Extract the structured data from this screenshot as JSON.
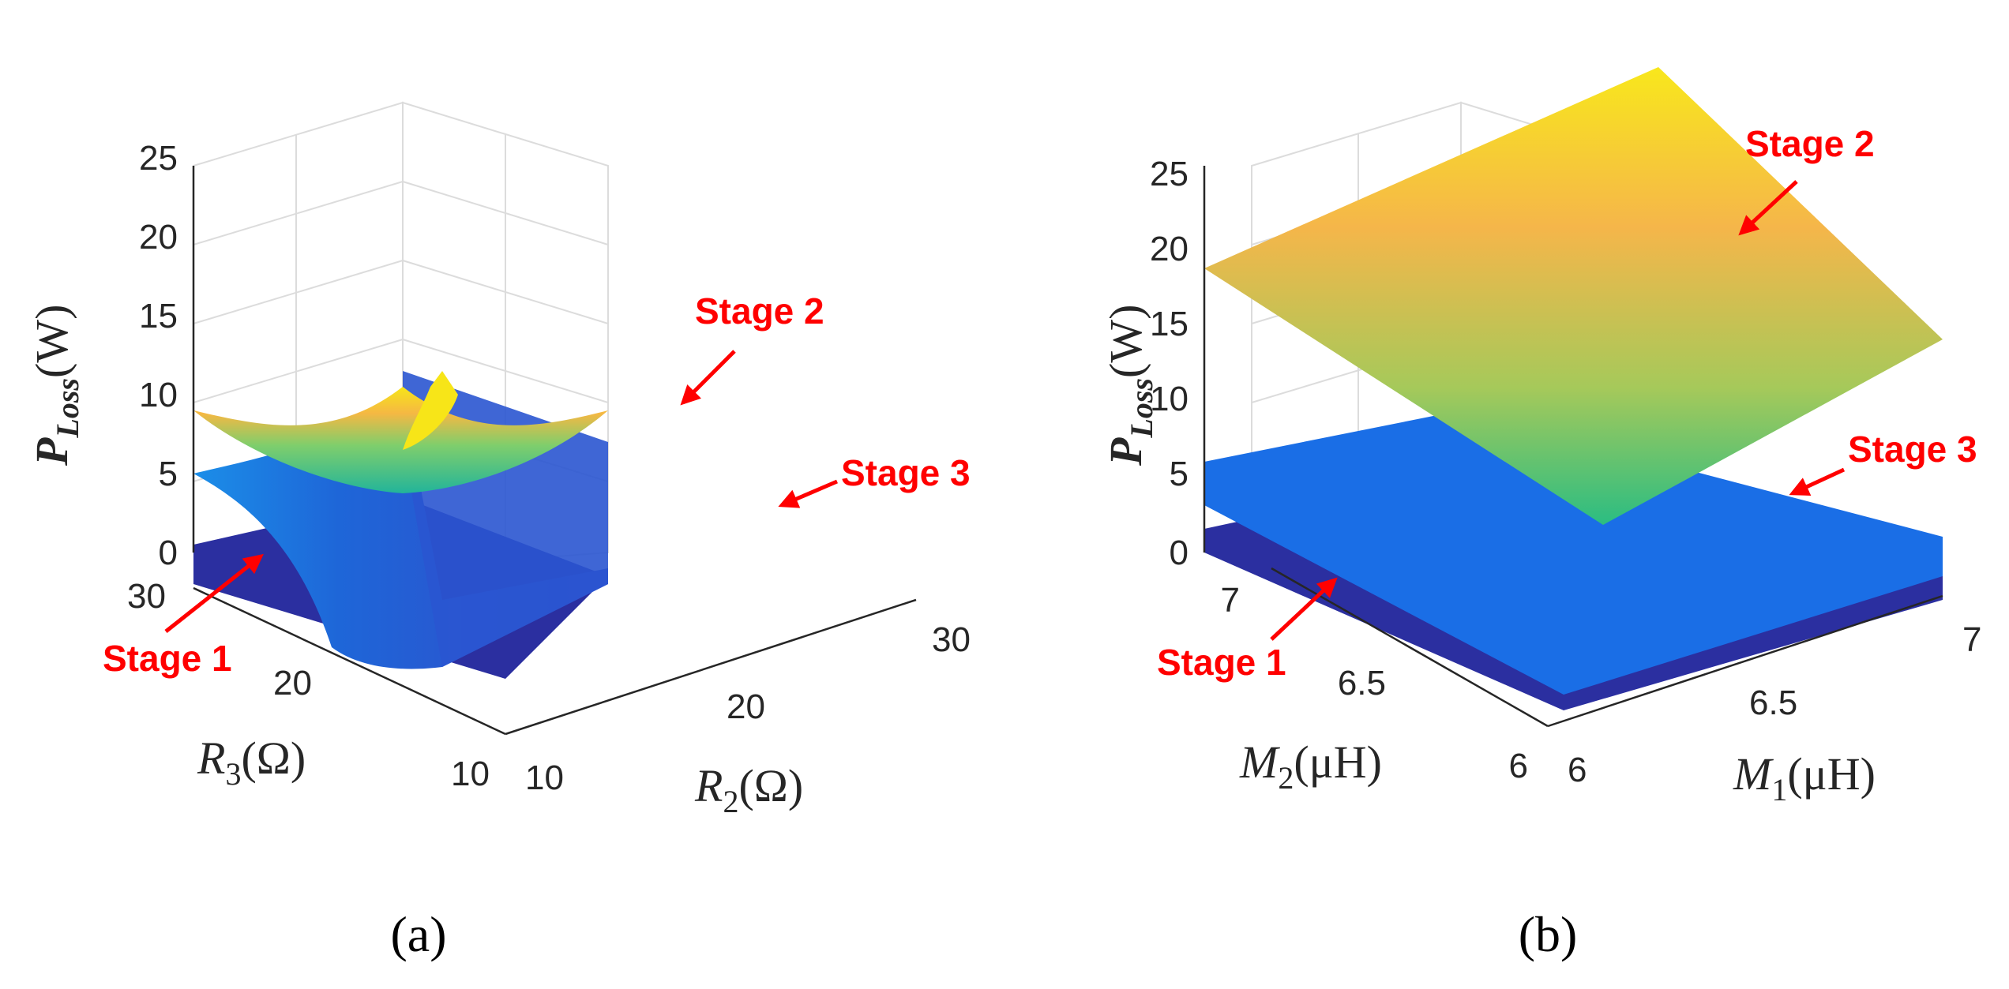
{
  "colors": {
    "stage1": "#2b2fa0",
    "stage3": "#1a6ee6",
    "annotation": "#ff0000",
    "parula_low": "#3a4fd4",
    "parula_mid": "#1fbf9c",
    "parula_high": "#f7e518"
  },
  "chart_data": [
    {
      "panel_label": "(a)",
      "type": "surface3d",
      "zlabel": "P_Loss(W)",
      "zlabel_main": "P",
      "zlabel_sub": "Loss",
      "zlabel_unit": "(W)",
      "xlabel": "R_2(Ω)",
      "xlabel_main": "R",
      "xlabel_sub": "2",
      "xlabel_unit": "(Ω)",
      "ylabel": "R_3(Ω)",
      "ylabel_main": "R",
      "ylabel_sub": "3",
      "ylabel_unit": "(Ω)",
      "xlim": [
        10,
        30
      ],
      "ylim": [
        10,
        30
      ],
      "zlim": [
        0,
        25
      ],
      "xticks": [
        "10",
        "20",
        "30"
      ],
      "yticks": [
        "10",
        "20",
        "30"
      ],
      "zticks": [
        "0",
        "5",
        "10",
        "15",
        "20",
        "25"
      ],
      "series": [
        {
          "name": "Stage 1",
          "approx_ploss_range": [
            1.5,
            2.0
          ]
        },
        {
          "name": "Stage 2",
          "approx_ploss_range": [
            7,
            14
          ]
        },
        {
          "name": "Stage 3",
          "approx_ploss_range": [
            1,
            5.5
          ]
        }
      ],
      "annotations": [
        "Stage 1",
        "Stage 2",
        "Stage 3"
      ]
    },
    {
      "panel_label": "(b)",
      "type": "surface3d",
      "zlabel": "P_Loss(W)",
      "zlabel_main": "P",
      "zlabel_sub": "Loss",
      "zlabel_unit": "(W)",
      "xlabel": "M_1(μH)",
      "xlabel_main": "M",
      "xlabel_sub": "1",
      "xlabel_unit": "(μH)",
      "ylabel": "M_2(μH)",
      "ylabel_main": "M",
      "ylabel_sub": "2",
      "ylabel_unit": "(μH)",
      "xlim": [
        6,
        7
      ],
      "ylim": [
        6,
        7
      ],
      "zlim": [
        0,
        25
      ],
      "xticks": [
        "6",
        "6.5",
        "7"
      ],
      "yticks": [
        "6",
        "6.5",
        "7"
      ],
      "zticks": [
        "0",
        "5",
        "10",
        "15",
        "20",
        "25"
      ],
      "series": [
        {
          "name": "Stage 1",
          "approx_ploss_range": [
            1.5,
            2.0
          ]
        },
        {
          "name": "Stage 2",
          "approx_ploss_range": [
            3,
            30
          ]
        },
        {
          "name": "Stage 3",
          "approx_ploss_range": [
            2,
            6
          ]
        }
      ],
      "annotations": [
        "Stage 1",
        "Stage 2",
        "Stage 3"
      ]
    }
  ]
}
